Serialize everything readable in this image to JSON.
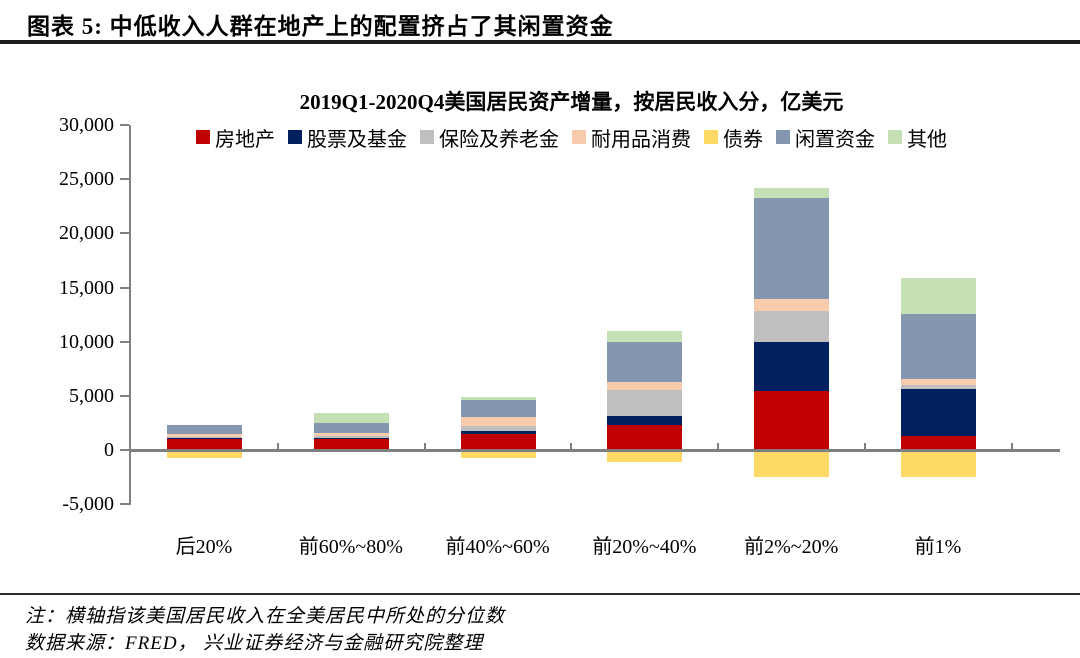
{
  "header": {
    "figure_label": "图表 5:  中低收入人群在地产上的配置挤占了其闲置资金"
  },
  "chart_data": {
    "type": "bar",
    "stacked": true,
    "title": "2019Q1-2020Q4美国居民资产增量，按居民收入分，亿美元",
    "unit": "亿美元",
    "grid": false,
    "legend_position": "top",
    "categories": [
      "后20%",
      "前60%~80%",
      "前40%~60%",
      "前20%~40%",
      "前2%~20%",
      "前1%"
    ],
    "series": [
      {
        "name": "房地产",
        "color": "#C00000",
        "values": [
          1000,
          1000,
          1450,
          2350,
          5450,
          1250
        ]
      },
      {
        "name": "股票及基金",
        "color": "#002060",
        "values": [
          150,
          150,
          300,
          800,
          4550,
          4350
        ]
      },
      {
        "name": "保险及养老金",
        "color": "#BFBFBF",
        "values": [
          50,
          100,
          480,
          2400,
          2800,
          380
        ]
      },
      {
        "name": "耐用品消费",
        "color": "#F8CBAD",
        "values": [
          260,
          310,
          780,
          700,
          1150,
          550
        ]
      },
      {
        "name": "债券",
        "color": "#FFD966",
        "values": [
          -700,
          0,
          -750,
          -1100,
          -2500,
          -2500
        ]
      },
      {
        "name": "闲置资金",
        "color": "#8496B0",
        "values": [
          860,
          950,
          1620,
          3700,
          9350,
          6050
        ]
      },
      {
        "name": "其他",
        "color": "#C5E0B4",
        "values": [
          0,
          870,
          250,
          1000,
          900,
          3300
        ]
      }
    ],
    "ylim": [
      -5000,
      30000
    ],
    "ytick_interval": 5000,
    "ytick_labels": [
      "30,000",
      "25,000",
      "20,000",
      "15,000",
      "10,000",
      "5,000",
      "0",
      "-5,000"
    ],
    "axis_color": "#808080"
  },
  "footer": {
    "note": "注：横轴指该美国居民收入在全美居民中所处的分位数",
    "source": "数据来源：FRED，  兴业证券经济与金融研究院整理"
  }
}
